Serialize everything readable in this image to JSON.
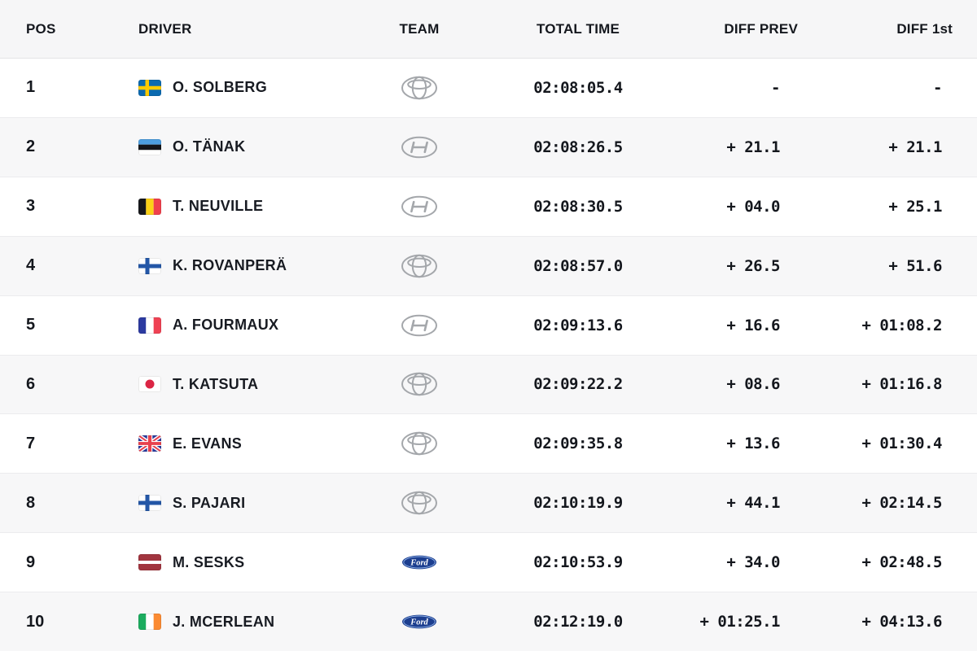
{
  "table": {
    "columns": [
      {
        "key": "pos",
        "label": "POS"
      },
      {
        "key": "driver",
        "label": "DRIVER"
      },
      {
        "key": "team",
        "label": "TEAM"
      },
      {
        "key": "total_time",
        "label": "TOTAL TIME"
      },
      {
        "key": "diff_prev",
        "label": "DIFF PREV"
      },
      {
        "key": "diff_first",
        "label": "DIFF 1st"
      }
    ],
    "rows": [
      {
        "pos": "1",
        "flag": "sweden",
        "driver": "O. SOLBERG",
        "team": "toyota",
        "total_time": "02:08:05.4",
        "diff_prev": "-",
        "diff_first": "-"
      },
      {
        "pos": "2",
        "flag": "estonia",
        "driver": "O. TÄNAK",
        "team": "hyundai",
        "total_time": "02:08:26.5",
        "diff_prev": "+ 21.1",
        "diff_first": "+ 21.1"
      },
      {
        "pos": "3",
        "flag": "belgium",
        "driver": "T. NEUVILLE",
        "team": "hyundai",
        "total_time": "02:08:30.5",
        "diff_prev": "+ 04.0",
        "diff_first": "+ 25.1"
      },
      {
        "pos": "4",
        "flag": "finland",
        "driver": "K. ROVANPERÄ",
        "team": "toyota",
        "total_time": "02:08:57.0",
        "diff_prev": "+ 26.5",
        "diff_first": "+ 51.6"
      },
      {
        "pos": "5",
        "flag": "france",
        "driver": "A. FOURMAUX",
        "team": "hyundai",
        "total_time": "02:09:13.6",
        "diff_prev": "+ 16.6",
        "diff_first": "+ 01:08.2"
      },
      {
        "pos": "6",
        "flag": "japan",
        "driver": "T. KATSUTA",
        "team": "toyota",
        "total_time": "02:09:22.2",
        "diff_prev": "+ 08.6",
        "diff_first": "+ 01:16.8"
      },
      {
        "pos": "7",
        "flag": "united-kingdom",
        "driver": "E. EVANS",
        "team": "toyota",
        "total_time": "02:09:35.8",
        "diff_prev": "+ 13.6",
        "diff_first": "+ 01:30.4"
      },
      {
        "pos": "8",
        "flag": "finland",
        "driver": "S. PAJARI",
        "team": "toyota",
        "total_time": "02:10:19.9",
        "diff_prev": "+ 44.1",
        "diff_first": "+ 02:14.5"
      },
      {
        "pos": "9",
        "flag": "latvia",
        "driver": "M. SESKS",
        "team": "ford",
        "total_time": "02:10:53.9",
        "diff_prev": "+ 34.0",
        "diff_first": "+ 02:48.5"
      },
      {
        "pos": "10",
        "flag": "ireland",
        "driver": "J. MCERLEAN",
        "team": "ford",
        "total_time": "02:12:19.0",
        "diff_prev": "+ 01:25.1",
        "diff_first": "+ 04:13.6"
      }
    ]
  },
  "colors": {
    "header_bg": "#f6f6f7",
    "row_alt_bg": "#f7f7f8",
    "row_bg": "#ffffff",
    "text": "#14171d",
    "logo_gray": "#a4a7ab",
    "ford_blue": "#1c3e8f"
  }
}
